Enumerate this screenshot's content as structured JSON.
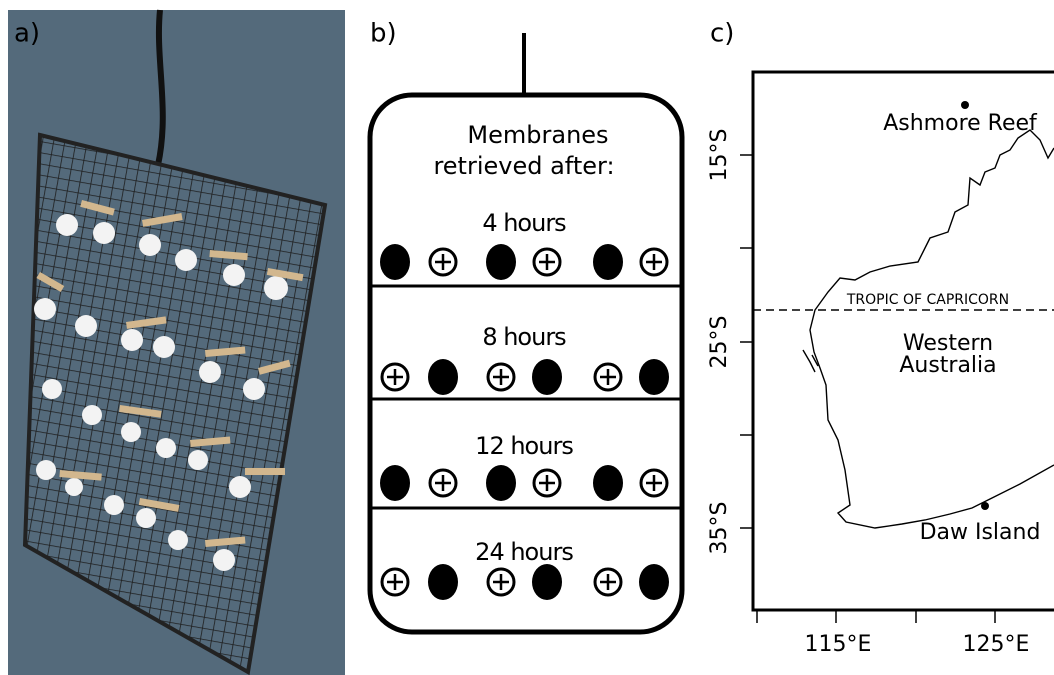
{
  "panels": {
    "a": {
      "label": "a)"
    },
    "b": {
      "label": "b)",
      "title_lines": [
        "Membranes",
        "retrieved after:"
      ],
      "rows": [
        "4 hours",
        "8 hours",
        "12 hours",
        "24 hours"
      ]
    },
    "c": {
      "label": "c)",
      "lat_labels": [
        "15°S",
        "25°S",
        "35°S"
      ],
      "lon_labels": [
        "115°E",
        "125°E"
      ],
      "places": [
        "Ashmore Reef",
        "Daw Island"
      ],
      "tropic": "TROPIC OF CAPRICORN",
      "region_lines": [
        "Western",
        "Australia"
      ]
    }
  }
}
